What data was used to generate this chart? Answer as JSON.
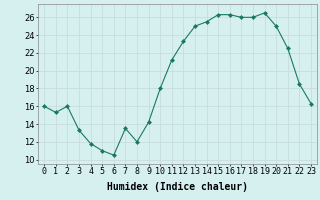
{
  "x": [
    0,
    1,
    2,
    3,
    4,
    5,
    6,
    7,
    8,
    9,
    10,
    11,
    12,
    13,
    14,
    15,
    16,
    17,
    18,
    19,
    20,
    21,
    22,
    23
  ],
  "y": [
    16.0,
    15.3,
    16.0,
    13.3,
    11.8,
    11.0,
    10.5,
    13.5,
    12.0,
    14.2,
    18.0,
    21.2,
    23.3,
    25.0,
    25.5,
    26.3,
    26.3,
    26.0,
    26.0,
    26.5,
    25.0,
    22.5,
    18.5,
    16.3
  ],
  "line_color": "#1a7a5e",
  "marker": "D",
  "marker_size": 2.0,
  "bg_color": "#d6f0f0",
  "grid_color": "#c8dede",
  "xlabel": "Humidex (Indice chaleur)",
  "xlim": [
    -0.5,
    23.5
  ],
  "ylim": [
    9.5,
    27.5
  ],
  "yticks": [
    10,
    12,
    14,
    16,
    18,
    20,
    22,
    24,
    26
  ],
  "xticks": [
    0,
    1,
    2,
    3,
    4,
    5,
    6,
    7,
    8,
    9,
    10,
    11,
    12,
    13,
    14,
    15,
    16,
    17,
    18,
    19,
    20,
    21,
    22,
    23
  ],
  "xtick_labels": [
    "0",
    "1",
    "2",
    "3",
    "4",
    "5",
    "6",
    "7",
    "8",
    "9",
    "10",
    "11",
    "12",
    "13",
    "14",
    "15",
    "16",
    "17",
    "18",
    "19",
    "20",
    "21",
    "22",
    "23"
  ],
  "label_fontsize": 7,
  "tick_fontsize": 6.0
}
